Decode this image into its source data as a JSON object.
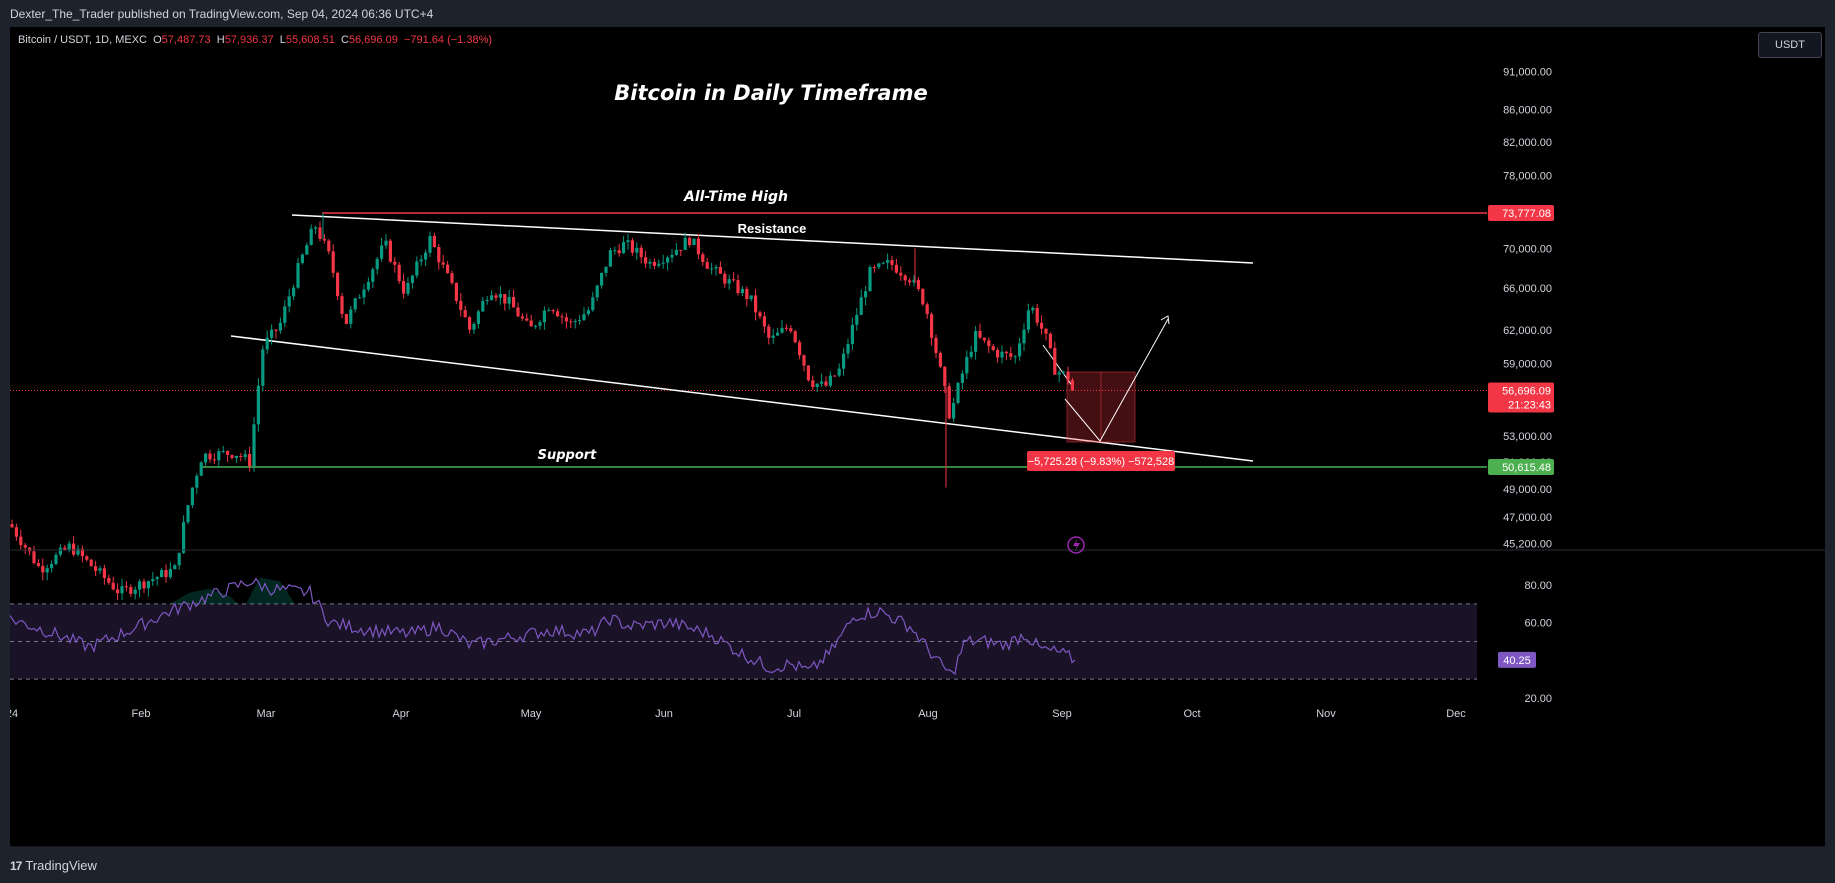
{
  "header": {
    "publish_text": "Dexter_The_Trader published on TradingView.com, Sep 04, 2024 06:36 UTC+4"
  },
  "legend": {
    "symbol": "Bitcoin / USDT, 1D, MEXC",
    "o_label": "O",
    "o_value": "57,487.73",
    "h_label": "H",
    "h_value": "57,936.37",
    "l_label": "L",
    "l_value": "55,608.51",
    "c_label": "C",
    "c_value": "56,696.09",
    "change": "−791.64 (−1.38%)"
  },
  "currency_button": "USDT",
  "footer": {
    "logo_mark": "17",
    "logo_text": "TradingView"
  },
  "colors": {
    "background": "#000000",
    "up": "#089981",
    "down": "#f23645",
    "ath_line": "#f23645",
    "support_line": "#4caf50",
    "trendlines": "#ffffff",
    "rsi_line": "#7e57c2",
    "rsi_band": "#1a1327",
    "label_red": "#f23645",
    "label_green": "#4caf50",
    "label_purple": "#7e57c2"
  },
  "chart_data": {
    "type": "candlestick",
    "title": "Bitcoin in Daily Timeframe",
    "price_axis": {
      "ticks": [
        "91,000.00",
        "86,000.00",
        "82,000.00",
        "78,000.00",
        "70,000.00",
        "66,000.00",
        "62,000.00",
        "59,000.00",
        "53,000.00",
        "51,000.00",
        "49,000.00",
        "47,000.00",
        "45,200.00"
      ],
      "scale": "log"
    },
    "time_axis": {
      "ticks": [
        "24",
        "Feb",
        "Mar",
        "Apr",
        "May",
        "Jun",
        "Jul",
        "Aug",
        "Sep",
        "Oct",
        "Nov",
        "Dec"
      ]
    },
    "annotations": {
      "ath_label": "All-Time High",
      "ath_value": 73777.08,
      "ath_tag": "73,777.08",
      "resistance_label": "Resistance",
      "support_label": "Support",
      "support_value": 50615.48,
      "support_tag": "50,615.48",
      "current_price_tag": "56,696.09",
      "countdown_tag": "21:23:43",
      "measure_tag": "−5,725.28 (−9.83%) −572,528"
    },
    "rsi": {
      "ticks": [
        "80.00",
        "60.00",
        "20.00"
      ],
      "current_tag": "40.25",
      "current_value": 40.25,
      "upper_band": 70,
      "lower_band": 30
    }
  }
}
